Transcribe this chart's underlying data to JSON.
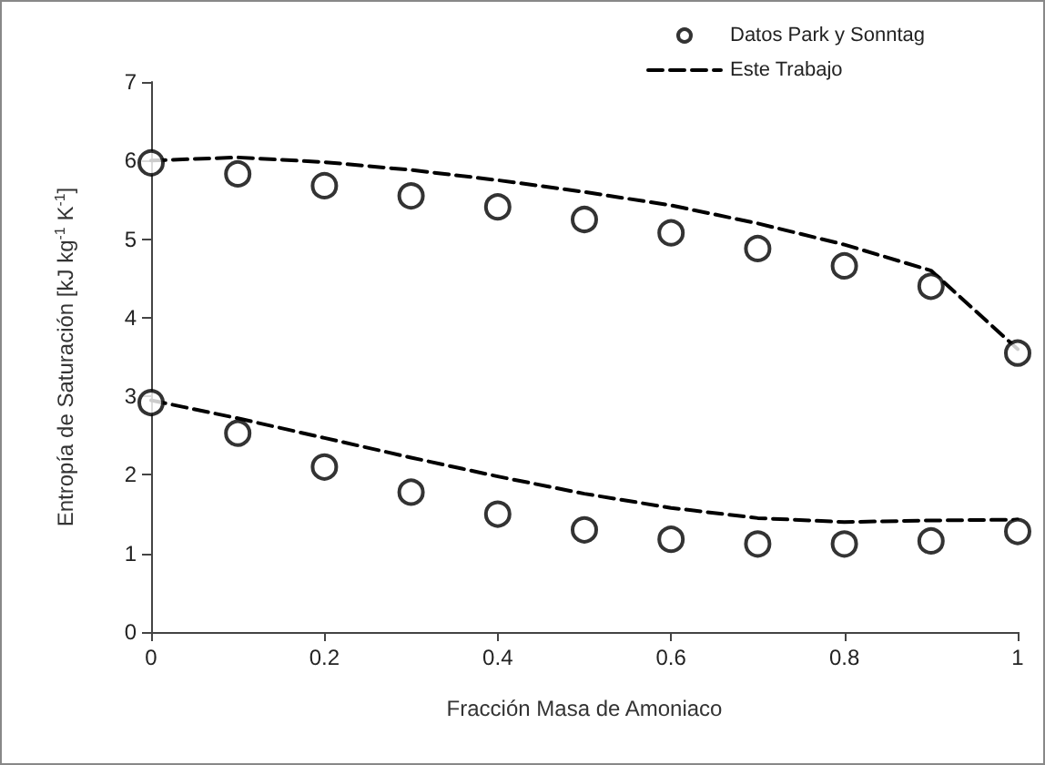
{
  "chart_data": {
    "type": "scatter",
    "xlabel": "Fracción Masa de Amoniaco",
    "ylabel": "Entropía de Saturación [kJ kg$^{-1}$ K$^{-1}$]",
    "x": [
      0,
      0.1,
      0.2,
      0.3,
      0.4,
      0.5,
      0.6,
      0.7,
      0.8,
      0.9,
      1
    ],
    "series": [
      {
        "name": "Datos Park y Sonntag",
        "color": "#000000",
        "marker": "circle",
        "values": [
          5.97,
          5.83,
          5.68,
          5.55,
          5.41,
          5.25,
          5.08,
          4.88,
          4.66,
          4.4,
          3.55
        ]
      },
      {
        "color": "#000000",
        "marker": "circle",
        "values": [
          2.92,
          2.53,
          2.1,
          1.78,
          1.5,
          1.3,
          1.18,
          1.12,
          1.12,
          1.16,
          1.28
        ]
      },
      {
        "name": "Este Trabajo",
        "type": "line",
        "color": "#000000",
        "line_style": "dashed",
        "marker": "none",
        "values": [
          6.0,
          6.04,
          5.98,
          5.88,
          5.75,
          5.6,
          5.43,
          5.2,
          4.93,
          4.6,
          3.6
        ]
      },
      {
        "type": "line",
        "color": "#000000",
        "line_style": "dashed",
        "marker": "none",
        "values": [
          2.95,
          2.72,
          2.47,
          2.22,
          1.98,
          1.76,
          1.58,
          1.45,
          1.4,
          1.42,
          1.43
        ]
      }
    ],
    "xlim": [
      0,
      1
    ],
    "xticks": [
      0,
      0.2,
      0.4,
      0.6,
      0.8,
      1
    ],
    "ylim": [
      0,
      7
    ],
    "yticks": [
      0,
      1,
      2,
      3,
      4,
      5,
      6,
      7
    ],
    "grid": false,
    "legend": "top right"
  }
}
